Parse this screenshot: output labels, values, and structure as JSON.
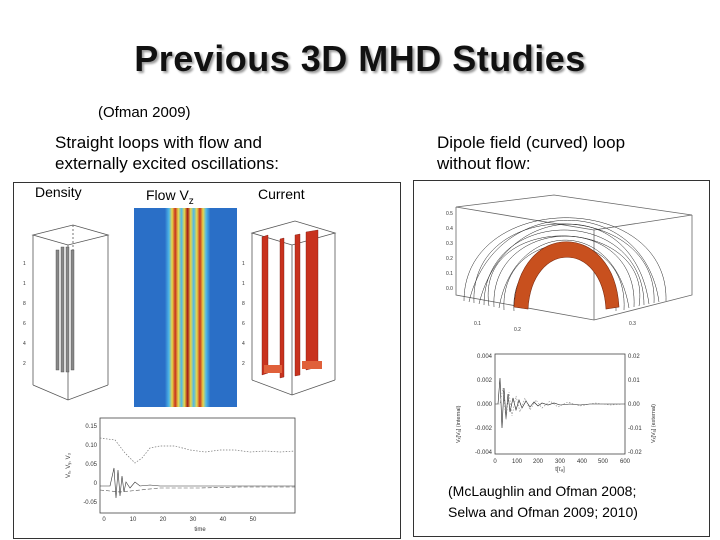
{
  "slide": {
    "title": "Previous 3D MHD Studies",
    "citation_top": "(Ofman 2009)",
    "left_heading_line1": "Straight loops with flow and",
    "left_heading_line2": "externally excited oscillations:",
    "right_heading_line1": "Dipole field (curved) loop",
    "right_heading_line2": "without flow:",
    "label_density": "Density",
    "label_flow": "Flow V",
    "label_flow_sub": "z",
    "label_current": "Current",
    "citation_bottom_line1": "(McLaughlin and Ofman 2008;",
    "citation_bottom_line2": "Selwa and Ofman 2009; 2010)"
  },
  "figures": {
    "left_plot": {
      "y_ticks": [
        "0.15",
        "0.10",
        "0.05",
        "0",
        "-0.05"
      ],
      "x_ticks": [
        "0",
        "10",
        "20",
        "30",
        "40",
        "50"
      ],
      "xlabel": "time",
      "ylabel": "Vₓ, Vᵧ, V₃"
    },
    "right_plot": {
      "y_ticks_left": [
        "0.004",
        "0.002",
        "0.000",
        "-0.002",
        "-0.004"
      ],
      "y_ticks_right": [
        "0.02",
        "0.01",
        "0.00",
        "-0.01",
        "-0.02"
      ],
      "x_ticks": [
        "0",
        "100",
        "200",
        "300",
        "400",
        "500",
        "600"
      ],
      "xlabel": "t[τₐ]",
      "ylabel_left": "Vₓ[Vₐ] (internal)",
      "ylabel_right": "Vₓ[Vₐ] (external)"
    }
  },
  "colors": {
    "flow_background": "#2a6fc7",
    "current_red": "#c8321e",
    "loop_orange": "#c8501e"
  }
}
